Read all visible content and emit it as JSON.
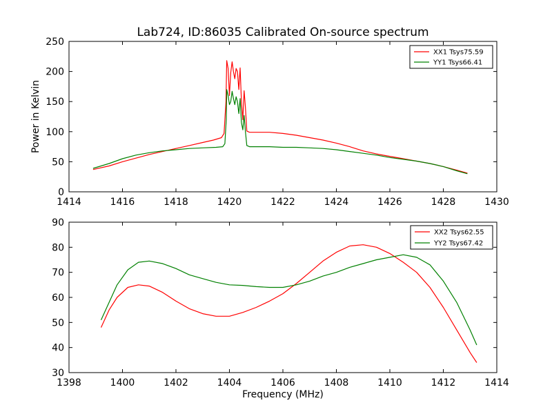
{
  "chart_data": [
    {
      "type": "line",
      "title": "Lab724, ID:86035 Calibrated On-source spectrum",
      "xlabel": "",
      "ylabel": "Power in Kelvin",
      "xlim": [
        1414,
        1430
      ],
      "ylim": [
        0,
        250
      ],
      "xticks": [
        "1414",
        "1416",
        "1418",
        "1420",
        "1422",
        "1424",
        "1426",
        "1428",
        "1430"
      ],
      "yticks": [
        "0",
        "50",
        "100",
        "150",
        "200",
        "250"
      ],
      "grid": false,
      "legend_position": "top-right",
      "series": [
        {
          "name": "XX1 Tsys75.59",
          "color": "#ff0000",
          "points": [
            [
              1414.9,
              37
            ],
            [
              1415.5,
              43
            ],
            [
              1416,
              50
            ],
            [
              1416.5,
              56
            ],
            [
              1417,
              62
            ],
            [
              1417.5,
              67
            ],
            [
              1418,
              72
            ],
            [
              1418.5,
              77
            ],
            [
              1419,
              82
            ],
            [
              1419.4,
              86
            ],
            [
              1419.7,
              90
            ],
            [
              1419.8,
              97
            ],
            [
              1419.87,
              150
            ],
            [
              1419.9,
              218
            ],
            [
              1419.95,
              205
            ],
            [
              1420.0,
              160
            ],
            [
              1420.05,
              198
            ],
            [
              1420.1,
              216
            ],
            [
              1420.15,
              200
            ],
            [
              1420.2,
              188
            ],
            [
              1420.25,
              205
            ],
            [
              1420.3,
              200
            ],
            [
              1420.35,
              170
            ],
            [
              1420.4,
              206
            ],
            [
              1420.45,
              150
            ],
            [
              1420.5,
              120
            ],
            [
              1420.55,
              168
            ],
            [
              1420.6,
              140
            ],
            [
              1420.65,
              101
            ],
            [
              1420.75,
              99
            ],
            [
              1421,
              99
            ],
            [
              1421.5,
              99
            ],
            [
              1422,
              97
            ],
            [
              1422.5,
              94
            ],
            [
              1423,
              90
            ],
            [
              1423.5,
              86
            ],
            [
              1424,
              81
            ],
            [
              1424.5,
              75
            ],
            [
              1425,
              68
            ],
            [
              1425.5,
              63
            ],
            [
              1426,
              59
            ],
            [
              1426.5,
              55
            ],
            [
              1427,
              51
            ],
            [
              1427.5,
              47
            ],
            [
              1428,
              42
            ],
            [
              1428.5,
              36
            ],
            [
              1428.9,
              31
            ]
          ]
        },
        {
          "name": "YY1 Tsys66.41",
          "color": "#008000",
          "points": [
            [
              1414.9,
              39
            ],
            [
              1415.5,
              47
            ],
            [
              1416,
              55
            ],
            [
              1416.5,
              61
            ],
            [
              1417,
              65
            ],
            [
              1417.5,
              68
            ],
            [
              1418,
              70
            ],
            [
              1418.5,
              72
            ],
            [
              1419,
              73
            ],
            [
              1419.5,
              74
            ],
            [
              1419.75,
              75
            ],
            [
              1419.83,
              80
            ],
            [
              1419.88,
              120
            ],
            [
              1419.9,
              170
            ],
            [
              1419.95,
              160
            ],
            [
              1420.0,
              145
            ],
            [
              1420.05,
              150
            ],
            [
              1420.1,
              167
            ],
            [
              1420.15,
              155
            ],
            [
              1420.2,
              145
            ],
            [
              1420.25,
              158
            ],
            [
              1420.3,
              150
            ],
            [
              1420.35,
              130
            ],
            [
              1420.4,
              155
            ],
            [
              1420.45,
              115
            ],
            [
              1420.5,
              103
            ],
            [
              1420.55,
              127
            ],
            [
              1420.6,
              100
            ],
            [
              1420.65,
              77
            ],
            [
              1420.75,
              75
            ],
            [
              1421,
              75
            ],
            [
              1421.5,
              75
            ],
            [
              1422,
              74
            ],
            [
              1422.5,
              74
            ],
            [
              1423,
              73
            ],
            [
              1423.5,
              72
            ],
            [
              1424,
              70
            ],
            [
              1424.5,
              67
            ],
            [
              1425,
              64
            ],
            [
              1425.5,
              61
            ],
            [
              1426,
              57
            ],
            [
              1426.5,
              54
            ],
            [
              1427,
              51
            ],
            [
              1427.5,
              47
            ],
            [
              1428,
              42
            ],
            [
              1428.5,
              35
            ],
            [
              1428.9,
              30
            ]
          ]
        }
      ]
    },
    {
      "type": "line",
      "title": "",
      "xlabel": "Frequency (MHz)",
      "ylabel": "",
      "xlim": [
        1398,
        1414
      ],
      "ylim": [
        30,
        90
      ],
      "xticks": [
        "1398",
        "1400",
        "1402",
        "1404",
        "1406",
        "1408",
        "1410",
        "1412",
        "1414"
      ],
      "yticks": [
        "30",
        "40",
        "50",
        "60",
        "70",
        "80",
        "90"
      ],
      "grid": false,
      "legend_position": "top-right",
      "series": [
        {
          "name": "XX2 Tsys62.55",
          "color": "#ff0000",
          "points": [
            [
              1399.2,
              48
            ],
            [
              1399.5,
              55
            ],
            [
              1399.8,
              60
            ],
            [
              1400.2,
              64
            ],
            [
              1400.6,
              65
            ],
            [
              1401,
              64.5
            ],
            [
              1401.5,
              62
            ],
            [
              1402,
              58.5
            ],
            [
              1402.5,
              55.5
            ],
            [
              1403,
              53.5
            ],
            [
              1403.5,
              52.5
            ],
            [
              1404,
              52.5
            ],
            [
              1404.5,
              54
            ],
            [
              1405,
              56
            ],
            [
              1405.5,
              58.5
            ],
            [
              1406,
              61.5
            ],
            [
              1406.5,
              65.5
            ],
            [
              1407,
              70
            ],
            [
              1407.5,
              74.5
            ],
            [
              1408,
              78
            ],
            [
              1408.5,
              80.5
            ],
            [
              1409,
              81
            ],
            [
              1409.5,
              80
            ],
            [
              1410,
              77.5
            ],
            [
              1410.5,
              74
            ],
            [
              1411,
              70
            ],
            [
              1411.5,
              64
            ],
            [
              1412,
              56
            ],
            [
              1412.5,
              47
            ],
            [
              1413,
              38
            ],
            [
              1413.25,
              34
            ]
          ]
        },
        {
          "name": "YY2 Tsys67.42",
          "color": "#008000",
          "points": [
            [
              1399.2,
              51
            ],
            [
              1399.5,
              58
            ],
            [
              1399.8,
              65
            ],
            [
              1400.2,
              71
            ],
            [
              1400.6,
              74
            ],
            [
              1401,
              74.5
            ],
            [
              1401.5,
              73.5
            ],
            [
              1402,
              71.5
            ],
            [
              1402.5,
              69
            ],
            [
              1403,
              67.5
            ],
            [
              1403.5,
              66
            ],
            [
              1404,
              65
            ],
            [
              1404.5,
              64.8
            ],
            [
              1405,
              64.3
            ],
            [
              1405.5,
              64
            ],
            [
              1406,
              64
            ],
            [
              1406.5,
              65
            ],
            [
              1407,
              66.5
            ],
            [
              1407.5,
              68.5
            ],
            [
              1408,
              70
            ],
            [
              1408.5,
              72
            ],
            [
              1409,
              73.5
            ],
            [
              1409.5,
              75
            ],
            [
              1410,
              76
            ],
            [
              1410.5,
              77
            ],
            [
              1411,
              76
            ],
            [
              1411.5,
              73
            ],
            [
              1412,
              66.5
            ],
            [
              1412.5,
              58
            ],
            [
              1413,
              47
            ],
            [
              1413.25,
              41
            ]
          ]
        }
      ]
    }
  ]
}
